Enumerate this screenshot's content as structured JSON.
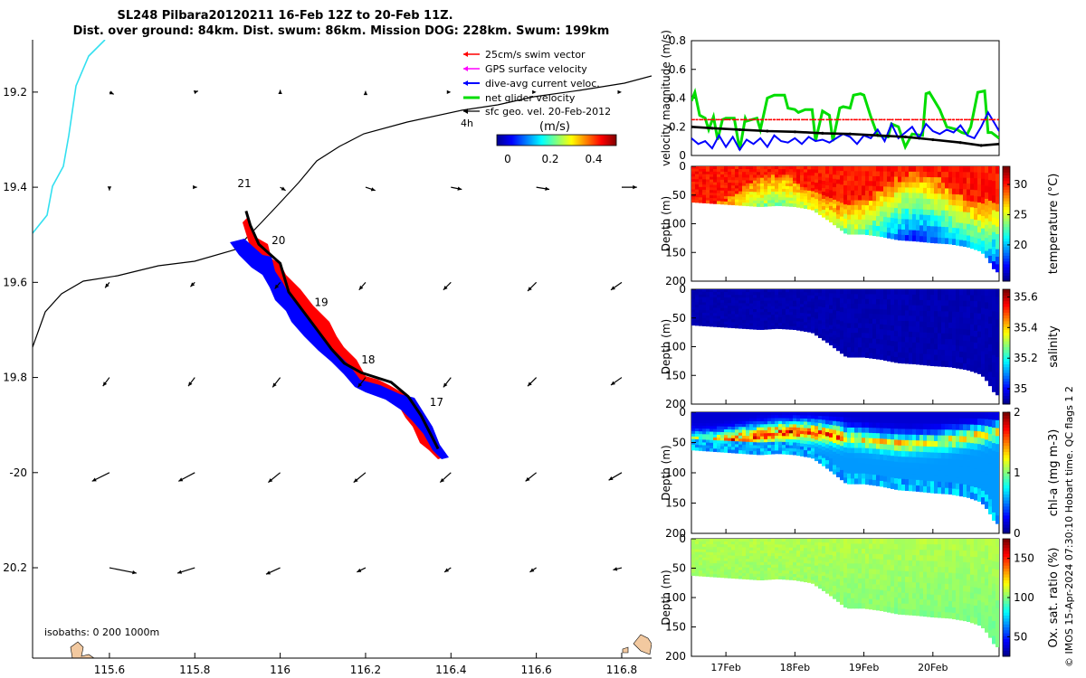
{
  "title_line1": "SL248 Pilbara20120211 16-Feb 12Z to 20-Feb 11Z.",
  "title_line2": "Dist. over ground: 84km. Dist. swum: 86km. Mission DOG: 228km. Swum: 199km",
  "watermark": "© IMOS 15-Apr-2024 07:30:10 Hobart time. QC flags 1  2",
  "colors": {
    "swim": "#ff0000",
    "gps": "#ff00ff",
    "current": "#0000ff",
    "net": "#00dd00",
    "geo": "#000000",
    "track": "#000000",
    "isobath": "#33e0f0",
    "land": "#f2c9a0"
  },
  "chart_data": [
    {
      "type": "map",
      "title": "SL248 Pilbara20120211",
      "xlim": [
        115.42,
        116.87
      ],
      "ylim": [
        -20.39,
        -19.09
      ],
      "x_ticks": [
        115.6,
        115.8,
        116,
        116.2,
        116.4,
        116.6,
        116.8
      ],
      "x_tick_labels": [
        "115.6",
        "115.8",
        "116",
        "116.2",
        "116.4",
        "116.6",
        "116.8"
      ],
      "y_ticks": [
        -19.2,
        -19.4,
        -19.6,
        -19.8,
        -20.0,
        -20.2
      ],
      "y_tick_labels": [
        "19.2",
        "19.4",
        "19.6",
        "19.8",
        "-20",
        "20.2"
      ],
      "legend": [
        {
          "label": "25cm/s swim vector",
          "color_key": "swim"
        },
        {
          "label": "GPS surface velocity",
          "color_key": "gps"
        },
        {
          "label": "dive-avg current veloc.",
          "color_key": "current"
        },
        {
          "label": "net glider velocity",
          "color_key": "net"
        },
        {
          "label": "sfc geo. vel. 20-Feb-2012",
          "color_key": "geo"
        }
      ],
      "geo_vel_label": "4h",
      "colorbar_unit": "(m/s)",
      "colorbar_ticks": [
        "0",
        "0.2",
        "0.4"
      ],
      "colorbar_range": [
        -0.1,
        0.5
      ],
      "isobaths_label": "isobaths: 0   200  1000m",
      "glider_path": [
        [
          116.37,
          -19.95
        ],
        [
          116.33,
          -19.88
        ],
        [
          116.3,
          -19.84
        ],
        [
          116.26,
          -19.81
        ],
        [
          116.19,
          -19.79
        ],
        [
          116.15,
          -19.77
        ],
        [
          116.12,
          -19.74
        ],
        [
          116.07,
          -19.68
        ],
        [
          116.02,
          -19.62
        ],
        [
          116.0,
          -19.56
        ],
        [
          115.95,
          -19.52
        ],
        [
          115.93,
          -19.48
        ],
        [
          115.92,
          -19.45
        ]
      ],
      "day_labels": [
        {
          "label": "17",
          "lon": 116.35,
          "lat": -19.86
        },
        {
          "label": "18",
          "lon": 116.19,
          "lat": -19.77
        },
        {
          "label": "19",
          "lon": 116.08,
          "lat": -19.65
        },
        {
          "label": "20",
          "lon": 115.98,
          "lat": -19.52
        },
        {
          "label": "21",
          "lon": 115.9,
          "lat": -19.4
        }
      ],
      "geo_vectors_u": [
        [
          0.04,
          0.03,
          0.0,
          0.0,
          0.0,
          0.0,
          0.0
        ],
        [
          0.0,
          0.02,
          0.05,
          0.09,
          0.1,
          0.12,
          0.14
        ],
        [
          -0.04,
          -0.04,
          -0.05,
          -0.06,
          -0.07,
          -0.08,
          -0.1
        ],
        [
          -0.06,
          -0.06,
          -0.07,
          -0.07,
          -0.07,
          -0.08,
          -0.1
        ],
        [
          -0.16,
          -0.15,
          -0.11,
          -0.11,
          -0.1,
          -0.1,
          -0.12
        ],
        [
          0.25,
          -0.16,
          -0.13,
          -0.08,
          -0.06,
          -0.06,
          -0.08
        ]
      ],
      "geo_vectors_v": [
        [
          -0.02,
          0.01,
          0.02,
          0.01,
          0.0,
          0.0,
          0.0
        ],
        [
          -0.03,
          0.0,
          -0.03,
          -0.03,
          -0.02,
          -0.02,
          0.0
        ],
        [
          -0.05,
          -0.04,
          -0.06,
          -0.07,
          -0.07,
          -0.08,
          -0.07
        ],
        [
          -0.08,
          -0.08,
          -0.09,
          -0.09,
          -0.09,
          -0.08,
          -0.07
        ],
        [
          -0.08,
          -0.08,
          -0.09,
          -0.09,
          -0.09,
          -0.08,
          -0.07
        ],
        [
          -0.05,
          -0.05,
          -0.06,
          -0.04,
          -0.04,
          -0.04,
          -0.02
        ]
      ]
    },
    {
      "type": "line",
      "ylabel": "velocity magnitude (m/s)",
      "ylim": [
        0,
        0.8
      ],
      "y_ticks": [
        "0",
        "0.2",
        "0.4",
        "0.6",
        "0.8"
      ],
      "x_days": [
        16.5,
        20.96
      ],
      "series": [
        {
          "name": "net glider velocity",
          "color_key": "net",
          "x": [
            16.5,
            16.55,
            16.62,
            16.7,
            16.75,
            16.82,
            16.88,
            16.95,
            17.0,
            17.12,
            17.2,
            17.28,
            17.3,
            17.45,
            17.5,
            17.6,
            17.7,
            17.8,
            17.85,
            17.9,
            18.0,
            18.05,
            18.15,
            18.25,
            18.3,
            18.4,
            18.5,
            18.55,
            18.65,
            18.7,
            18.8,
            18.85,
            18.95,
            19.0,
            19.1,
            19.2,
            19.35,
            19.4,
            19.5,
            19.6,
            19.7,
            19.85,
            19.9,
            19.95,
            20.1,
            20.2,
            20.35,
            20.42,
            20.5,
            20.55,
            20.65,
            20.75,
            20.8,
            20.85,
            20.96
          ],
          "values": [
            0.38,
            0.44,
            0.28,
            0.26,
            0.18,
            0.27,
            0.11,
            0.25,
            0.26,
            0.26,
            0.04,
            0.26,
            0.24,
            0.26,
            0.18,
            0.4,
            0.42,
            0.42,
            0.42,
            0.33,
            0.32,
            0.3,
            0.32,
            0.32,
            0.1,
            0.31,
            0.28,
            0.1,
            0.33,
            0.34,
            0.33,
            0.42,
            0.43,
            0.42,
            0.27,
            0.14,
            0.13,
            0.22,
            0.2,
            0.06,
            0.15,
            0.14,
            0.43,
            0.44,
            0.32,
            0.2,
            0.18,
            0.16,
            0.15,
            0.2,
            0.44,
            0.45,
            0.16,
            0.16,
            0.12
          ]
        },
        {
          "name": "dive-avg current veloc.",
          "color_key": "current",
          "x": [
            16.5,
            16.6,
            16.7,
            16.8,
            16.9,
            17.0,
            17.1,
            17.2,
            17.3,
            17.4,
            17.5,
            17.6,
            17.7,
            17.8,
            17.9,
            18.0,
            18.1,
            18.2,
            18.3,
            18.4,
            18.5,
            18.6,
            18.7,
            18.8,
            18.9,
            19.0,
            19.1,
            19.2,
            19.3,
            19.4,
            19.5,
            19.6,
            19.7,
            19.8,
            19.9,
            20.0,
            20.1,
            20.2,
            20.3,
            20.4,
            20.5,
            20.6,
            20.7,
            20.8,
            20.9,
            20.96
          ],
          "values": [
            0.12,
            0.08,
            0.1,
            0.05,
            0.14,
            0.06,
            0.13,
            0.04,
            0.11,
            0.08,
            0.12,
            0.06,
            0.14,
            0.1,
            0.09,
            0.12,
            0.08,
            0.13,
            0.1,
            0.11,
            0.09,
            0.12,
            0.15,
            0.13,
            0.08,
            0.14,
            0.12,
            0.18,
            0.1,
            0.22,
            0.12,
            0.16,
            0.2,
            0.12,
            0.22,
            0.17,
            0.15,
            0.18,
            0.16,
            0.21,
            0.14,
            0.12,
            0.2,
            0.3,
            0.22,
            0.17
          ]
        },
        {
          "name": "sfc geo. vel.",
          "color_key": "geo",
          "x": [
            16.5,
            16.8,
            17.2,
            17.6,
            18.0,
            18.4,
            18.8,
            19.2,
            19.6,
            20.0,
            20.4,
            20.7,
            20.96
          ],
          "values": [
            0.2,
            0.19,
            0.18,
            0.17,
            0.165,
            0.155,
            0.15,
            0.14,
            0.13,
            0.11,
            0.09,
            0.07,
            0.08
          ]
        },
        {
          "name": "25cm/s swim vector",
          "color_key": "swim",
          "x": [
            16.5,
            20.96
          ],
          "values": [
            0.25,
            0.25
          ]
        }
      ]
    },
    {
      "type": "heatmap",
      "panel": "temperature",
      "ylabel": "Depth (m)",
      "cbar_label": "temperature (°C)",
      "ylim": [
        200,
        0
      ],
      "y_ticks": [
        "0",
        "50",
        "100",
        "150",
        "200"
      ],
      "clim": [
        14,
        33
      ],
      "cbar_ticks": [
        20,
        25,
        30
      ],
      "cbar_tick_labels": [
        "20",
        "25",
        "30"
      ],
      "mixed_layer_value": 29.5,
      "deep_value": 20.5
    },
    {
      "type": "heatmap",
      "panel": "salinity",
      "ylabel": "Depth (m)",
      "cbar_label": "salinity",
      "ylim": [
        200,
        0
      ],
      "y_ticks": [
        "0",
        "50",
        "100",
        "150",
        "200"
      ],
      "clim": [
        34.9,
        35.65
      ],
      "cbar_ticks": [
        35.0,
        35.2,
        35.4,
        35.6
      ],
      "cbar_tick_labels": [
        "35",
        "35.2",
        "35.4",
        "35.6"
      ],
      "mixed_layer_value": 34.92,
      "deep_value": 34.92
    },
    {
      "type": "heatmap",
      "panel": "chl-a",
      "ylabel": "Depth (m)",
      "cbar_label": "chl-a (mg m-3)",
      "ylim": [
        200,
        0
      ],
      "y_ticks": [
        "0",
        "50",
        "100",
        "150",
        "200"
      ],
      "clim": [
        0,
        2
      ],
      "cbar_ticks": [
        0,
        1,
        2
      ],
      "cbar_tick_labels": [
        "0",
        "1",
        "2"
      ],
      "mixed_layer_value": 0.2,
      "deep_value": 0.6
    },
    {
      "type": "heatmap",
      "panel": "oxygen",
      "ylabel": "Depth (m)",
      "cbar_label": "Ox. sat. ratio (%)",
      "ylim": [
        200,
        0
      ],
      "y_ticks": [
        "0",
        "50",
        "100",
        "150",
        "200"
      ],
      "clim": [
        25,
        175
      ],
      "cbar_ticks": [
        50,
        100,
        150
      ],
      "cbar_tick_labels": [
        "50",
        "100",
        "150"
      ],
      "mixed_layer_value": 105,
      "deep_value": 95,
      "x_ticks": [
        17,
        18,
        19,
        20
      ],
      "x_tick_labels": [
        "17Feb",
        "18Feb",
        "19Feb",
        "20Feb"
      ]
    }
  ],
  "time_axis": {
    "days": [
      16.5,
      16.75,
      17.0,
      17.25,
      17.5,
      17.75,
      18.0,
      18.25,
      18.5,
      18.75,
      19.0,
      19.25,
      19.5,
      19.75,
      20.0,
      20.25,
      20.5,
      20.7,
      20.8,
      20.9,
      20.96
    ],
    "bottom_depth_m": [
      62,
      64,
      66,
      68,
      70,
      68,
      70,
      75,
      95,
      118,
      118,
      122,
      128,
      130,
      133,
      135,
      140,
      148,
      162,
      182,
      185
    ]
  }
}
